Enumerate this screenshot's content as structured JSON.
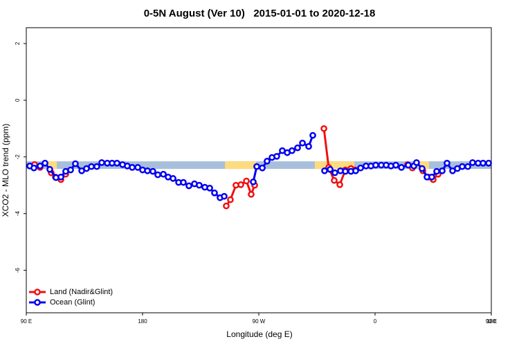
{
  "chart_data": {
    "type": "line",
    "title": "0-5N August (Ver 10)   2015-01-01 to 2020-12-18",
    "x_label": "Longitude (deg E)",
    "y_label": "XCO2 - MLO trend (ppm)",
    "xlim": [
      90,
      450
    ],
    "ylim": [
      -7.5,
      2.56
    ],
    "xticks": [
      {
        "value": 90,
        "label": "90 E"
      },
      180,
      {
        "value": 270,
        "label": "90 W"
      },
      {
        "value": 360,
        "label": "0"
      },
      {
        "value": 450,
        "label": "90 E"
      },
      {
        "value": 540,
        "label": "180"
      }
    ],
    "yticks": [
      2,
      0,
      -2,
      -4,
      -6
    ],
    "legend": "bottom-left",
    "band": {
      "y": -2.29,
      "color": "#a8bfdc",
      "land_color": "#fddc80",
      "land": [
        [
          105.5,
          113.6
        ],
        [
          243.8,
          267.9
        ],
        [
          313.4,
          343.9
        ],
        [
          393.2,
          401.8
        ]
      ]
    },
    "series": [
      {
        "name": "Land (Nadir&Glint)",
        "color": "#ee1111",
        "x": [
          96.4,
          100.7,
          null,
          109.3,
          112.5,
          116.8,
          120.5,
          null,
          244.8,
          248.0,
          252.3,
          256.1,
          260.4,
          264.1,
          266.8,
          null,
          320.4,
          324.1,
          328.4,
          332.7,
          337.0,
          341.3,
          344.5,
          null,
          385.2,
          388.9,
          null,
          397.0,
          401.2,
          405.0,
          408.8
        ],
        "values": [
          -2.27,
          -2.37,
          null,
          -2.56,
          -2.71,
          -2.8,
          -2.61,
          null,
          -3.73,
          -3.51,
          -3.0,
          -2.98,
          -2.85,
          -3.32,
          -3.0,
          null,
          -1.0,
          -2.37,
          -2.83,
          -2.98,
          -2.46,
          -2.41,
          -2.46,
          null,
          -2.27,
          -2.39,
          null,
          -2.49,
          -2.71,
          -2.8,
          -2.61
        ]
      },
      {
        "name": "Ocean (Glint)",
        "color": "#0000ee",
        "x": [
          92.7,
          95.9,
          100.7,
          104.5,
          108.2,
          113.0,
          116.8,
          120.5,
          124.3,
          128.0,
          132.9,
          136.6,
          140.4,
          144.6,
          148.4,
          152.7,
          156.4,
          160.2,
          164.5,
          168.2,
          172.0,
          176.3,
          180.0,
          183.8,
          188.0,
          191.8,
          196.1,
          199.8,
          203.6,
          207.9,
          211.6,
          215.9,
          220.2,
          223.9,
          228.2,
          232.0,
          235.7,
          240.0,
          243.2,
          null,
          265.7,
          268.4,
          272.7,
          276.4,
          280.2,
          283.9,
          288.2,
          292.0,
          295.7,
          300.0,
          303.8,
          308.6,
          311.8,
          null,
          320.9,
          325.2,
          328.9,
          333.2,
          337.0,
          341.3,
          345.0,
          348.8,
          353.0,
          356.8,
          360.5,
          364.8,
          368.6,
          372.3,
          376.1,
          380.4,
          385.7,
          390.0,
          392.1,
          396.4,
          400.2,
          403.9,
          407.7,
          412.0,
          415.7,
          420.0,
          423.7,
          427.5,
          431.8,
          435.5,
          439.8,
          443.6,
          447.9
        ],
        "values": [
          -2.32,
          -2.39,
          -2.32,
          -2.22,
          -2.44,
          -2.73,
          -2.71,
          -2.51,
          -2.46,
          -2.24,
          -2.49,
          -2.41,
          -2.34,
          -2.34,
          -2.2,
          -2.22,
          -2.22,
          -2.22,
          -2.27,
          -2.32,
          -2.37,
          -2.37,
          -2.46,
          -2.49,
          -2.51,
          -2.63,
          -2.61,
          -2.71,
          -2.76,
          -2.9,
          -2.9,
          -3.02,
          -2.95,
          -3.0,
          -3.07,
          -3.1,
          -3.27,
          -3.44,
          -3.39,
          null,
          -2.88,
          -2.34,
          -2.39,
          -2.15,
          -2.02,
          -1.98,
          -1.78,
          -1.85,
          -1.78,
          -1.68,
          -1.51,
          -1.63,
          -1.24,
          null,
          -2.49,
          -2.44,
          -2.56,
          -2.49,
          -2.51,
          -2.51,
          -2.49,
          -2.39,
          -2.32,
          -2.32,
          -2.29,
          -2.29,
          -2.29,
          -2.32,
          -2.29,
          -2.37,
          -2.29,
          -2.32,
          -2.2,
          -2.41,
          -2.71,
          -2.71,
          -2.51,
          -2.49,
          -2.22,
          -2.49,
          -2.41,
          -2.34,
          -2.34,
          -2.2,
          -2.22,
          -2.22,
          -2.22
        ]
      }
    ]
  }
}
